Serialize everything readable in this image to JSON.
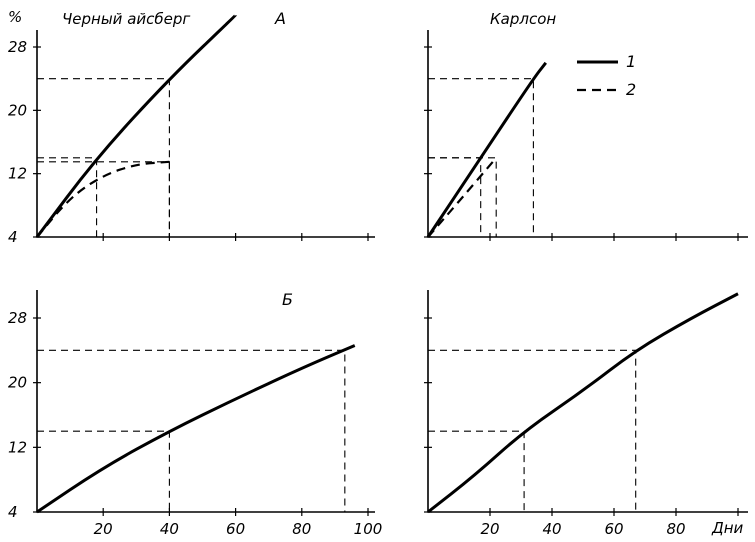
{
  "y_unit": "%",
  "x_unit": "Дни",
  "legend": [
    {
      "id": "1",
      "label": "1",
      "style": "solid"
    },
    {
      "id": "2",
      "label": "2",
      "style": "dashed"
    }
  ],
  "chart_data": [
    {
      "type": "line",
      "panel_label": "А",
      "title": "Черный айсберг",
      "ylabel": "%",
      "ylim": [
        4,
        31
      ],
      "xlim": [
        0,
        100
      ],
      "yticks": [
        4,
        12,
        20,
        28
      ],
      "series": [
        {
          "name": "1",
          "style": "solid",
          "x": [
            0,
            18,
            40,
            60
          ],
          "y": [
            4,
            14,
            24,
            32
          ]
        },
        {
          "name": "2",
          "style": "dashed",
          "x": [
            0,
            10,
            20,
            30,
            40
          ],
          "y": [
            4,
            9,
            11.8,
            13.2,
            13.5
          ]
        }
      ],
      "guides": [
        {
          "x": 18,
          "y": 14
        },
        {
          "x": 40,
          "y": 24
        },
        {
          "x": 40,
          "y": 13.5
        }
      ]
    },
    {
      "type": "line",
      "title": "Карлсон",
      "ylim": [
        4,
        31
      ],
      "xlim": [
        0,
        100
      ],
      "series": [
        {
          "name": "1",
          "style": "solid",
          "x": [
            0,
            17,
            34,
            38
          ],
          "y": [
            4,
            14,
            24,
            26
          ]
        },
        {
          "name": "2",
          "style": "dashed",
          "x": [
            0,
            10,
            22
          ],
          "y": [
            4,
            8.5,
            14
          ]
        }
      ],
      "guides": [
        {
          "x": 17,
          "y": 14
        },
        {
          "x": 34,
          "y": 24
        },
        {
          "x": 22,
          "y": 14
        }
      ]
    },
    {
      "type": "line",
      "panel_label": "Б",
      "ylim": [
        4,
        31
      ],
      "xlim": [
        0,
        100
      ],
      "yticks": [
        4,
        12,
        20,
        28
      ],
      "xticks": [
        20,
        40,
        60,
        80,
        100
      ],
      "series": [
        {
          "name": "1",
          "style": "solid",
          "x": [
            0,
            20,
            40,
            60,
            80,
            96
          ],
          "y": [
            4,
            9.5,
            14,
            18,
            21.8,
            24.6
          ]
        }
      ],
      "guides": [
        {
          "x": 40,
          "y": 14
        },
        {
          "x": 93,
          "y": 24
        }
      ]
    },
    {
      "type": "line",
      "xlabel": "Дни",
      "ylim": [
        4,
        31
      ],
      "xlim": [
        0,
        100
      ],
      "xticks": [
        20,
        40,
        60,
        80
      ],
      "series": [
        {
          "name": "1",
          "style": "solid",
          "x": [
            0,
            15,
            31,
            50,
            67,
            85,
            100
          ],
          "y": [
            4,
            8.5,
            14,
            19,
            24,
            28,
            31
          ]
        }
      ],
      "guides": [
        {
          "x": 31,
          "y": 14
        },
        {
          "x": 67,
          "y": 24
        }
      ]
    }
  ]
}
